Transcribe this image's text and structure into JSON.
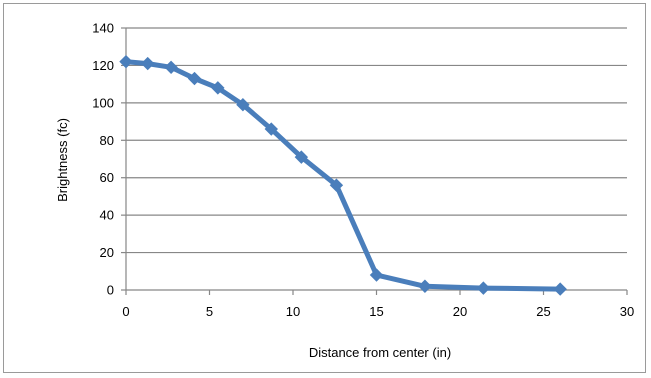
{
  "chart_data": {
    "type": "line",
    "title": "",
    "xlabel": "Distance from center (in)",
    "ylabel": "Brightness (fc)",
    "xlim": [
      0,
      30
    ],
    "ylim": [
      0,
      140
    ],
    "x_ticks": [
      0,
      5,
      10,
      15,
      20,
      25,
      30
    ],
    "y_ticks": [
      0,
      20,
      40,
      60,
      80,
      100,
      120,
      140
    ],
    "grid": "horizontal",
    "legend": "none",
    "series": [
      {
        "color": "#4a7ebb",
        "marker": "diamond",
        "x": [
          0,
          1.3,
          2.7,
          4.1,
          5.5,
          7.0,
          8.7,
          10.5,
          12.6,
          15.0,
          17.9,
          21.4,
          26.0
        ],
        "y": [
          122,
          121,
          119,
          113,
          108,
          99,
          86,
          71,
          56,
          8,
          2,
          1,
          0.5
        ]
      }
    ]
  }
}
